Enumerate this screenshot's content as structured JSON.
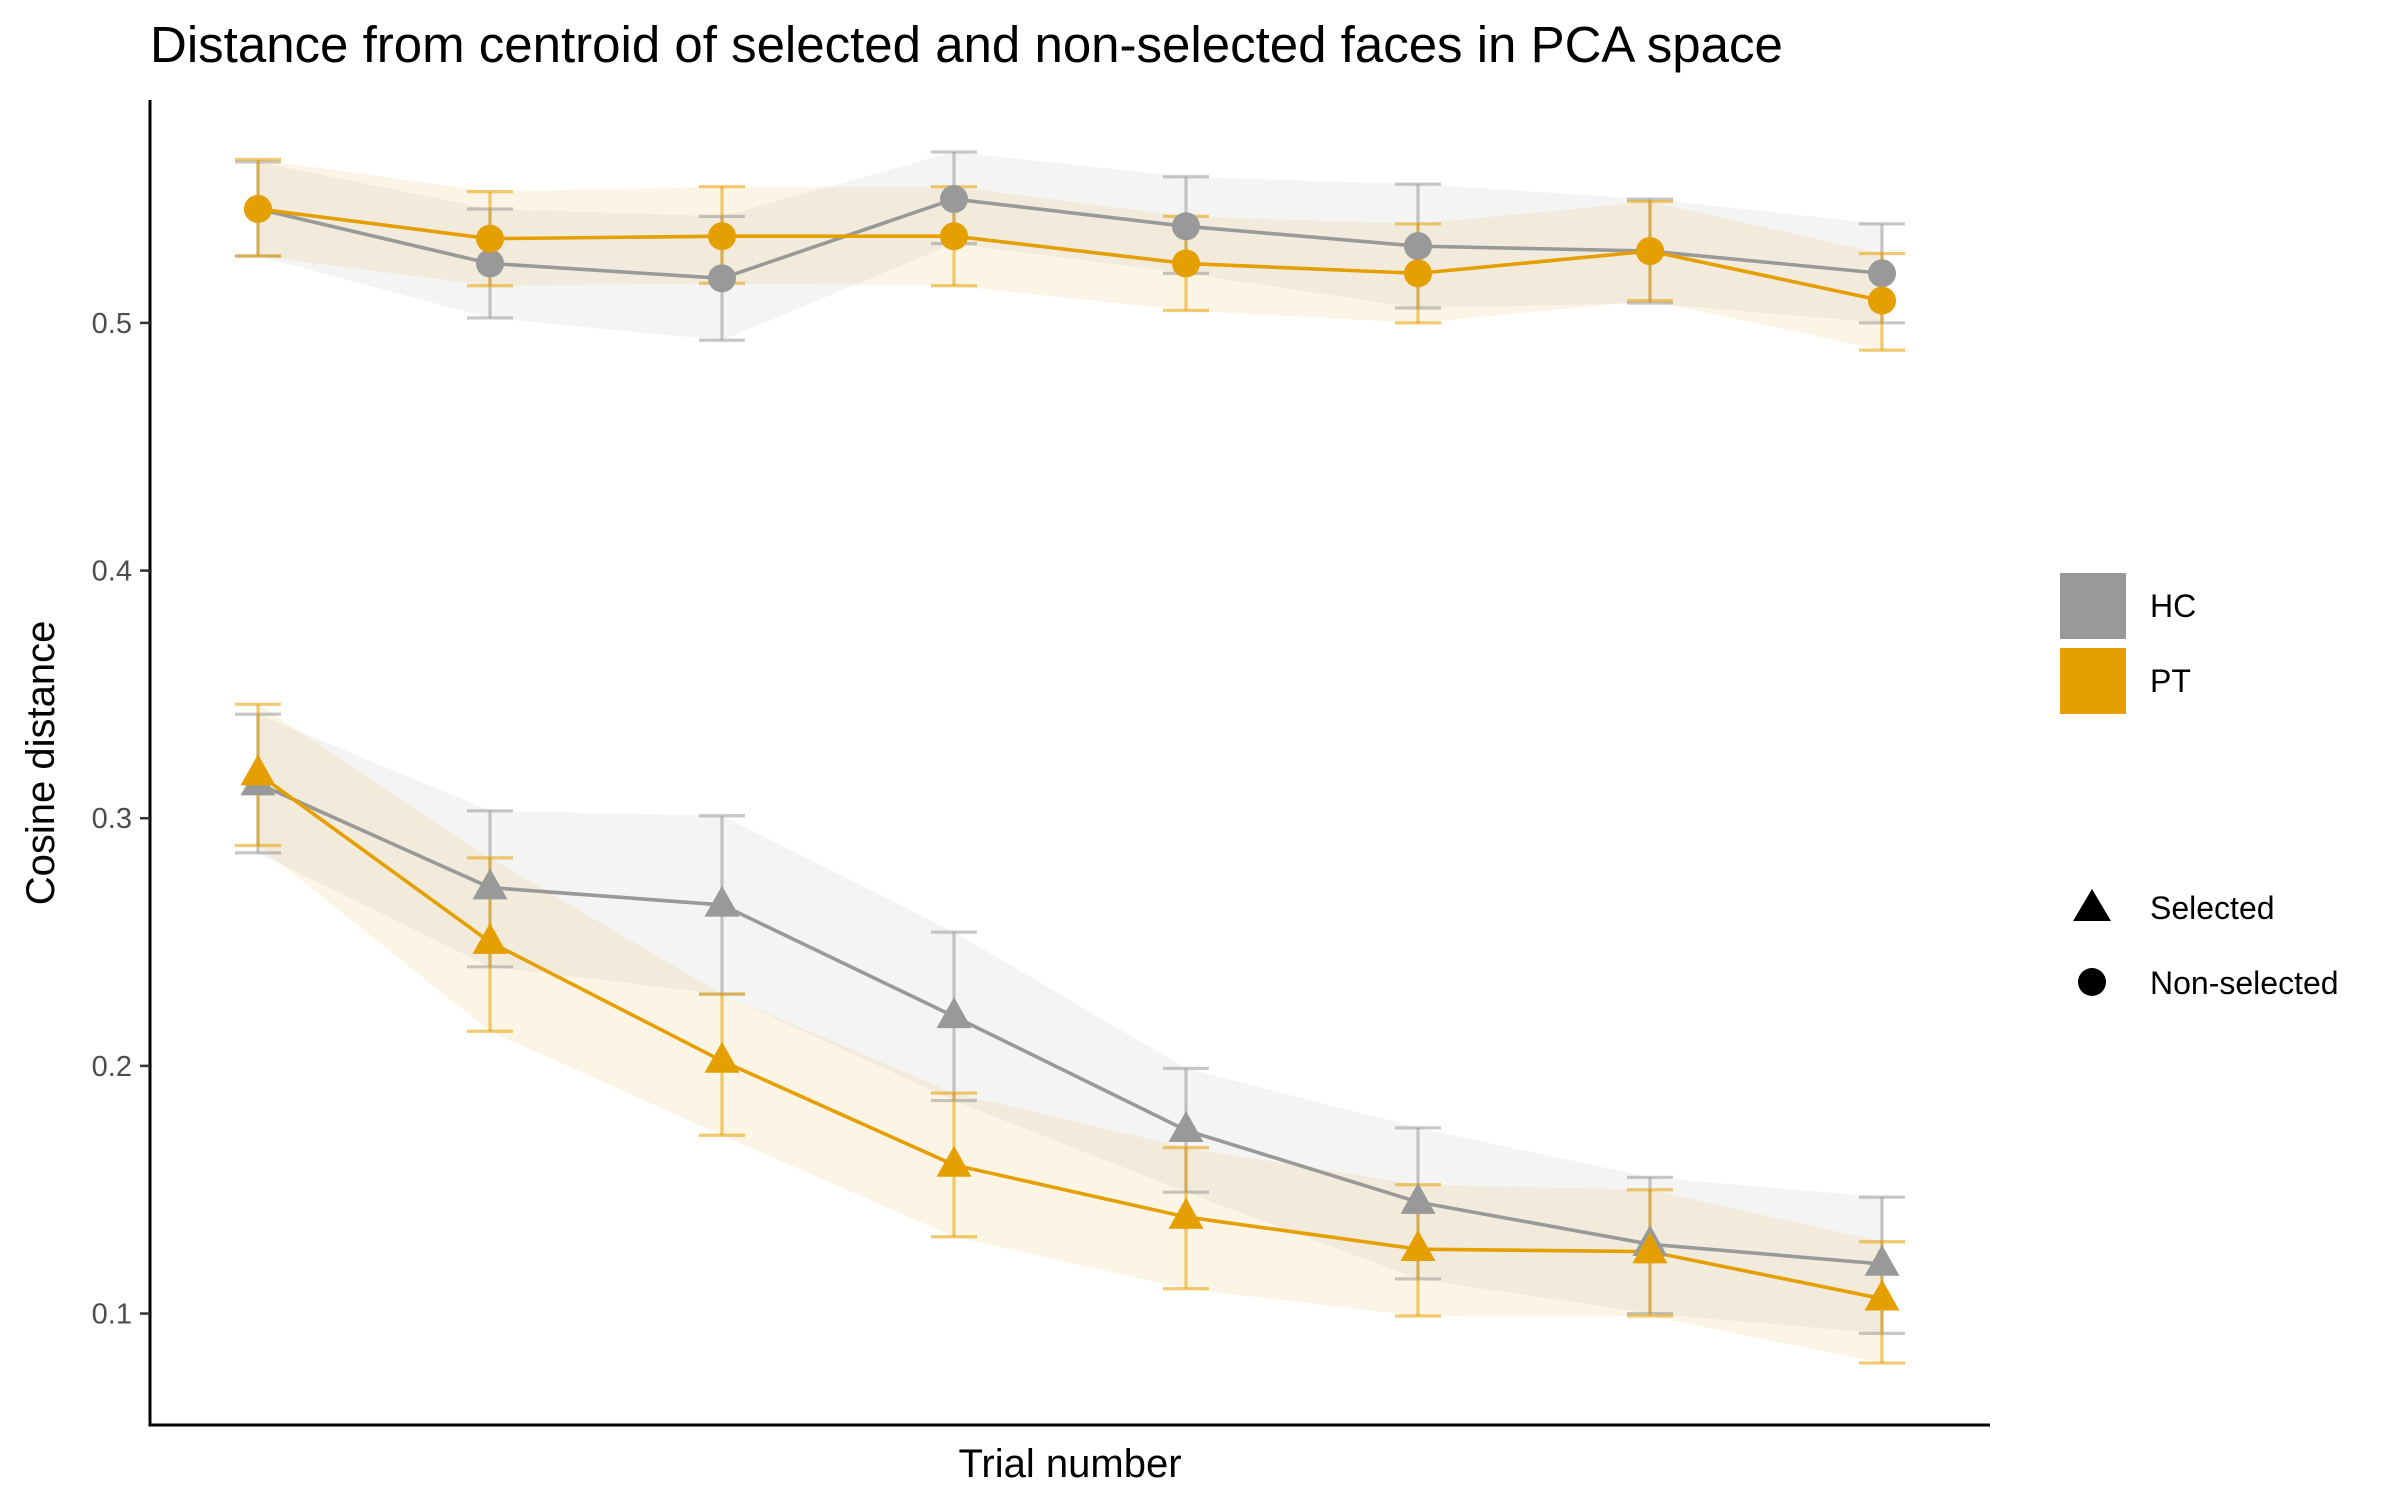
{
  "chart_data": {
    "type": "line",
    "title": "Distance from centroid of selected and non-selected faces in PCA space",
    "xlabel": "Trial number",
    "ylabel": "Cosine distance",
    "x": [
      1,
      2,
      3,
      4,
      5,
      6,
      7,
      8
    ],
    "xticks_shown": false,
    "ylim": [
      0.055,
      0.59
    ],
    "yticks": [
      0.1,
      0.2,
      0.3,
      0.4,
      0.5
    ],
    "ytick_labels": [
      "0.1",
      "0.2",
      "0.3",
      "0.4",
      "0.5"
    ],
    "grid": false,
    "legend_position": "right",
    "legend_groups": [
      {
        "name": "HC",
        "color": "#999999"
      },
      {
        "name": "PT",
        "color": "#E69F00"
      }
    ],
    "legend_shapes": [
      {
        "name": "Selected",
        "shape": "triangle"
      },
      {
        "name": "Non-selected",
        "shape": "circle"
      }
    ],
    "series": [
      {
        "group": "HC",
        "shape": "circle",
        "color": "#999999",
        "values": [
          0.546,
          0.524,
          0.518,
          0.55,
          0.539,
          0.531,
          0.529,
          0.52
        ],
        "lower": [
          0.527,
          0.502,
          0.493,
          0.532,
          0.52,
          0.506,
          0.508,
          0.5
        ],
        "upper": [
          0.565,
          0.546,
          0.543,
          0.569,
          0.559,
          0.556,
          0.55,
          0.54
        ]
      },
      {
        "group": "PT",
        "shape": "circle",
        "color": "#E69F00",
        "values": [
          0.546,
          0.534,
          0.535,
          0.535,
          0.524,
          0.52,
          0.529,
          0.509
        ],
        "lower": [
          0.527,
          0.515,
          0.516,
          0.515,
          0.505,
          0.5,
          0.509,
          0.489
        ],
        "upper": [
          0.566,
          0.553,
          0.555,
          0.555,
          0.543,
          0.54,
          0.549,
          0.528
        ]
      },
      {
        "group": "HC",
        "shape": "triangle",
        "color": "#999999",
        "values": [
          0.314,
          0.272,
          0.265,
          0.22,
          0.174,
          0.145,
          0.128,
          0.12
        ],
        "lower": [
          0.286,
          0.24,
          0.229,
          0.186,
          0.149,
          0.114,
          0.1,
          0.092
        ],
        "upper": [
          0.342,
          0.303,
          0.301,
          0.254,
          0.199,
          0.175,
          0.155,
          0.147
        ]
      },
      {
        "group": "PT",
        "shape": "triangle",
        "color": "#E69F00",
        "values": [
          0.318,
          0.25,
          0.202,
          0.16,
          0.139,
          0.126,
          0.125,
          0.106
        ],
        "lower": [
          0.289,
          0.214,
          0.172,
          0.131,
          0.11,
          0.099,
          0.099,
          0.08
        ],
        "upper": [
          0.346,
          0.284,
          0.229,
          0.189,
          0.167,
          0.152,
          0.15,
          0.129
        ]
      }
    ]
  }
}
